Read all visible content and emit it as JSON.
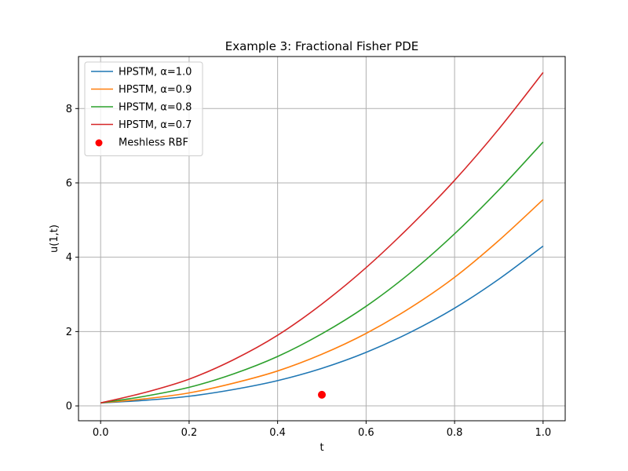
{
  "chart_data": {
    "type": "line",
    "title": "Example 3: Fractional Fisher PDE",
    "xlabel": "t",
    "ylabel": "u(1,t)",
    "xlim": [
      -0.05,
      1.05
    ],
    "ylim": [
      -0.4,
      9.4
    ],
    "xticks": [
      0.0,
      0.2,
      0.4,
      0.6,
      0.8,
      1.0
    ],
    "xtick_labels": [
      "0.0",
      "0.2",
      "0.4",
      "0.6",
      "0.8",
      "1.0"
    ],
    "yticks": [
      0,
      2,
      4,
      6,
      8
    ],
    "ytick_labels": [
      "0",
      "2",
      "4",
      "6",
      "8"
    ],
    "grid": true,
    "legend_position": "top-left",
    "x": [
      0.0,
      0.1,
      0.2,
      0.3,
      0.4,
      0.5,
      0.6,
      0.7,
      0.8,
      0.9,
      1.0
    ],
    "series": [
      {
        "name": "HPSTM, α=1.0",
        "color": "#1f77b4",
        "values": [
          0.08,
          0.15,
          0.26,
          0.44,
          0.68,
          1.01,
          1.44,
          1.98,
          2.63,
          3.41,
          4.3
        ]
      },
      {
        "name": "HPSTM, α=0.9",
        "color": "#ff7f0e",
        "values": [
          0.08,
          0.19,
          0.35,
          0.61,
          0.94,
          1.39,
          1.95,
          2.64,
          3.46,
          4.45,
          5.55
        ]
      },
      {
        "name": "HPSTM, α=0.8",
        "color": "#2ca02c",
        "values": [
          0.08,
          0.26,
          0.5,
          0.86,
          1.33,
          1.94,
          2.68,
          3.58,
          4.63,
          5.81,
          7.1
        ]
      },
      {
        "name": "HPSTM, α=0.7",
        "color": "#d62728",
        "values": [
          0.08,
          0.36,
          0.72,
          1.24,
          1.9,
          2.74,
          3.72,
          4.84,
          6.07,
          7.45,
          8.97
        ]
      }
    ],
    "scatter": {
      "name": "Meshless RBF",
      "color": "#ff0000",
      "points": [
        {
          "x": 0.5,
          "y": 0.3
        }
      ]
    }
  }
}
